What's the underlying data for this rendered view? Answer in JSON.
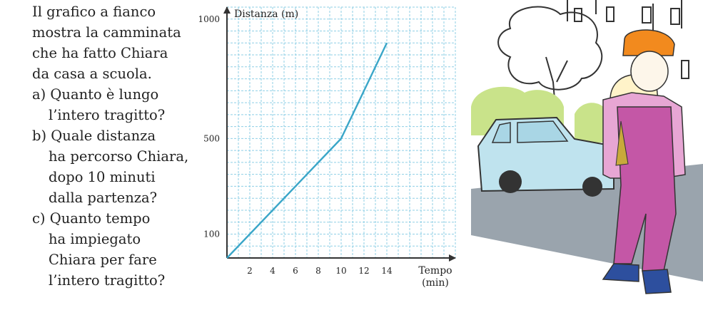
{
  "problem": {
    "intro": [
      "Il grafico a fianco",
      "mostra la camminata",
      "che ha fatto Chiara",
      "da casa a scuola."
    ],
    "questions": [
      {
        "lines": [
          "a) Quanto è lungo",
          "l’intero tragitto?"
        ]
      },
      {
        "lines": [
          "b) Quale distanza",
          "ha percorso Chiara,",
          "dopo 10 minuti",
          "dalla partenza?"
        ]
      },
      {
        "lines": [
          "c) Quanto tempo",
          "ha impiegato",
          "Chiara per fare",
          "l’intero tragitto?"
        ]
      }
    ]
  },
  "chart_data": {
    "type": "line",
    "ylabel": "Distanza (m)",
    "xlabel": "Tempo",
    "xlabel_unit": "(min)",
    "x_ticks": [
      2,
      4,
      6,
      8,
      10,
      12,
      14
    ],
    "y_ticks": [
      100,
      500,
      1000
    ],
    "xlim": [
      0,
      20
    ],
    "ylim": [
      0,
      1050
    ],
    "grid": true,
    "series": [
      {
        "x": [
          0,
          10,
          14
        ],
        "y": [
          0,
          500,
          900
        ]
      }
    ],
    "colors": {
      "line": "#3aa6c8",
      "grid": "#8fcfe6",
      "axis": "#333333"
    }
  }
}
